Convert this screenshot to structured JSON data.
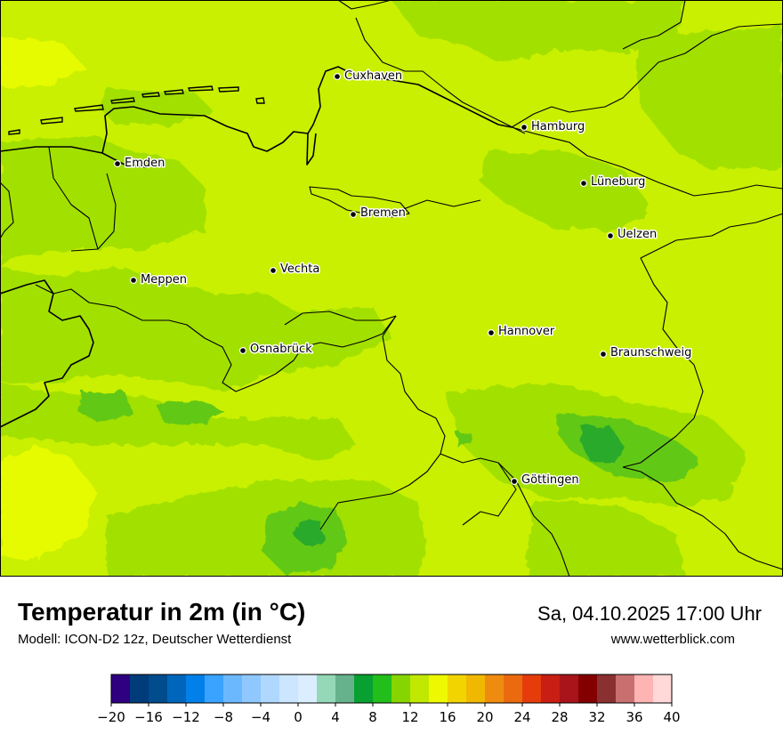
{
  "header": {
    "title": "Temperatur in 2m (in °C)",
    "model": "Modell: ICON-D2 12z, Deutscher Wetterdienst",
    "datetime": "Sa, 04.10.2025 17:00 Uhr",
    "site": "www.wetterblick.com"
  },
  "cities": [
    "Cuxhaven",
    "Hamburg",
    "Emden",
    "Lüneburg",
    "Bremen",
    "Uelzen",
    "Vechta",
    "Meppen",
    "Hannover",
    "Osnabrück",
    "Braunschweig",
    "Göttingen"
  ],
  "legend": {
    "ticks": [
      "−20",
      "−16",
      "−12",
      "−8",
      "−4",
      "0",
      "4",
      "8",
      "12",
      "16",
      "20",
      "24",
      "28",
      "32",
      "36",
      "40"
    ],
    "colors": [
      "#2f007f",
      "#003c7a",
      "#004c8c",
      "#0066bb",
      "#0080e8",
      "#3aa2ff",
      "#6cb8ff",
      "#8ec8ff",
      "#b0d8ff",
      "#cce6ff",
      "#daeeff",
      "#94d8b8",
      "#66b28c",
      "#08a030",
      "#22be1a",
      "#86d400",
      "#c0e800",
      "#eef800",
      "#f2d400",
      "#f0b800",
      "#ef8c10",
      "#eb6a10",
      "#e63c0c",
      "#c81e14",
      "#a8141a",
      "#840000",
      "#8a3030",
      "#c87070",
      "#ffb4b4",
      "#ffd8d8"
    ]
  },
  "map_colors": {
    "base": "#c8f000",
    "warm": "#e6fa00",
    "cool": "#a2e000",
    "cooler": "#62c818",
    "coolest": "#2aaa2a"
  }
}
